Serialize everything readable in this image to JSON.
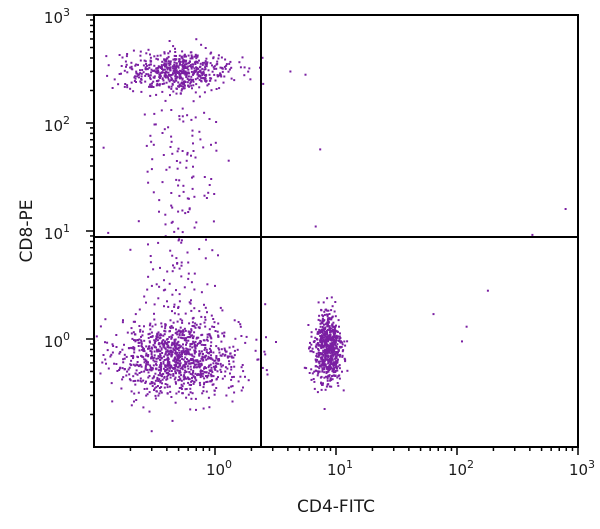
{
  "chart_data": {
    "type": "scatter",
    "title": "",
    "xlabel": "CD4-FITC",
    "ylabel": "CD8-PE",
    "x_scale": "log",
    "y_scale": "log",
    "xlim": [
      0.1,
      1000
    ],
    "ylim": [
      0.1,
      1000
    ],
    "x_ticks": [
      {
        "value": 1,
        "base": "10",
        "exp": "0"
      },
      {
        "value": 10,
        "base": "10",
        "exp": "1"
      },
      {
        "value": 100,
        "base": "10",
        "exp": "2"
      },
      {
        "value": 1000,
        "base": "10",
        "exp": "3"
      }
    ],
    "y_ticks": [
      {
        "value": 1,
        "base": "10",
        "exp": "0"
      },
      {
        "value": 10,
        "base": "10",
        "exp": "1"
      },
      {
        "value": 100,
        "base": "10",
        "exp": "2"
      },
      {
        "value": 1000,
        "base": "10",
        "exp": "3"
      }
    ],
    "grid": false,
    "quadrant_gates": {
      "x": 2.4,
      "y": 8.8
    },
    "point_color": "#7a1fa2",
    "point_population_centers": [
      {
        "x": 0.5,
        "y": 0.68,
        "count_est": 1100
      },
      {
        "x": 0.5,
        "y": 300,
        "count_est": 600
      },
      {
        "x": 8.6,
        "y": 0.8,
        "count_est": 650
      }
    ],
    "points": [
      [
        4.2,
        300
      ],
      [
        5.6,
        280
      ],
      [
        2.5,
        230
      ],
      [
        7.4,
        57
      ],
      [
        6.8,
        11
      ],
      [
        420,
        9.2
      ],
      [
        790,
        16
      ],
      [
        180,
        2.8
      ],
      [
        64,
        1.7
      ],
      [
        120,
        1.3
      ],
      [
        110,
        0.95
      ],
      [
        2.6,
        0.72
      ],
      [
        2.6,
        2.1
      ],
      [
        0.12,
        59
      ],
      [
        0.2,
        6.7
      ],
      [
        0.6,
        15
      ],
      [
        0.7,
        12
      ],
      [
        0.55,
        23
      ],
      [
        0.28,
        28
      ],
      [
        0.45,
        4.8
      ],
      [
        0.6,
        3.6
      ],
      [
        0.3,
        0.14
      ],
      [
        1.0,
        3.1
      ]
    ]
  }
}
